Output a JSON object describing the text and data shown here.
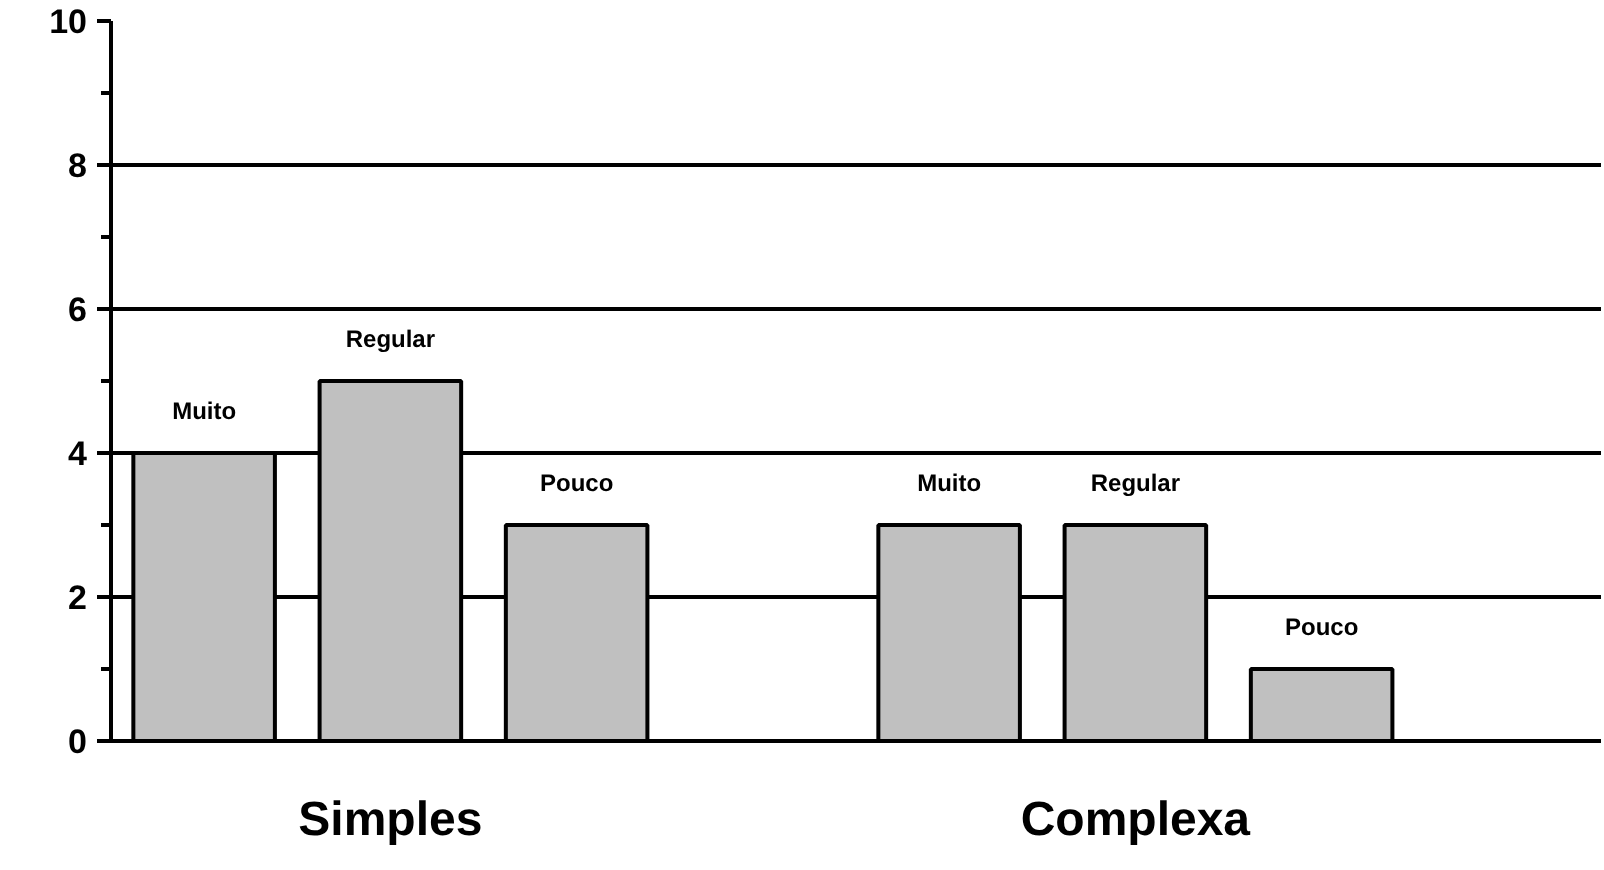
{
  "chart_data": {
    "type": "bar",
    "categories": [
      "Simples",
      "Complexa"
    ],
    "series": [
      {
        "name": "Muito",
        "color": "#c0c0c0",
        "values": [
          4,
          3
        ]
      },
      {
        "name": "Regular",
        "color": "#c0c0c0",
        "values": [
          5,
          3
        ]
      },
      {
        "name": "Pouco",
        "color": "#c0c0c0",
        "values": [
          3,
          1
        ]
      }
    ],
    "ylim": [
      0,
      10
    ],
    "yticks": [
      0,
      {
        "value": 1,
        "label": null
      },
      2,
      {
        "value": 3,
        "label": null
      },
      4,
      {
        "value": 5,
        "label": null
      },
      6,
      {
        "value": 7,
        "label": null
      },
      8,
      {
        "value": 9,
        "label": null
      },
      10
    ],
    "grid": "y"
  }
}
